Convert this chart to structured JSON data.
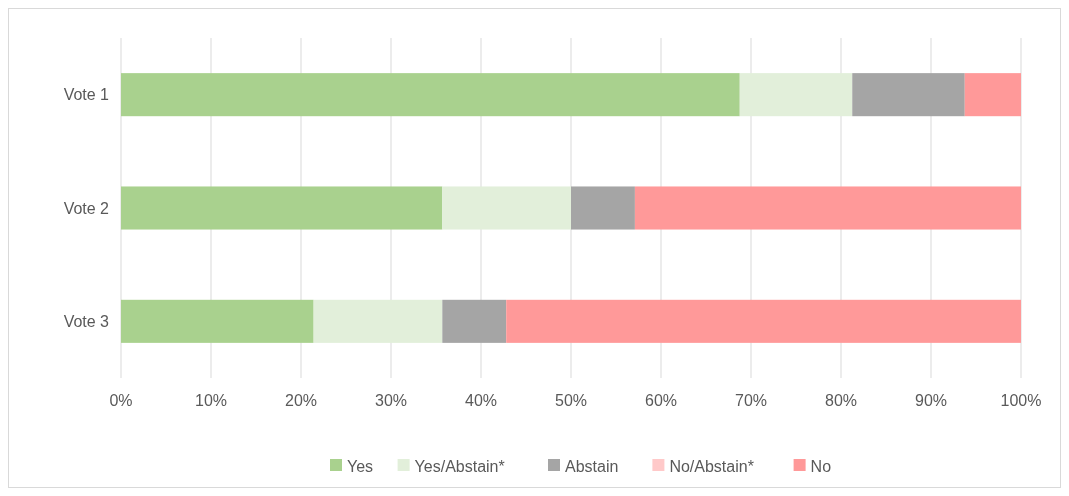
{
  "chart_data": {
    "type": "bar",
    "orientation": "horizontal",
    "stacked": true,
    "categories": [
      "Vote 1",
      "Vote 2",
      "Vote 3"
    ],
    "series": [
      {
        "name": "Yes",
        "color": "#a9d18e",
        "values": [
          68.75,
          35.7,
          21.4
        ]
      },
      {
        "name": "Yes/Abstain*",
        "color": "#e2efda",
        "values": [
          12.5,
          14.3,
          14.3
        ]
      },
      {
        "name": "Abstain",
        "color": "#a5a5a5",
        "values": [
          12.5,
          7.1,
          7.1
        ]
      },
      {
        "name": "No/Abstain*",
        "color": "#ffc9c9",
        "values": [
          0,
          0,
          0
        ]
      },
      {
        "name": "No",
        "color": "#ff9999",
        "values": [
          6.25,
          42.9,
          57.2
        ]
      }
    ],
    "xlim": [
      0,
      100
    ],
    "xticks": [
      {
        "value": 0,
        "label": "0%"
      },
      {
        "value": 10,
        "label": "10%"
      },
      {
        "value": 20,
        "label": "20%"
      },
      {
        "value": 30,
        "label": "30%"
      },
      {
        "value": 40,
        "label": "40%"
      },
      {
        "value": 50,
        "label": "50%"
      },
      {
        "value": 60,
        "label": "60%"
      },
      {
        "value": 70,
        "label": "70%"
      },
      {
        "value": 80,
        "label": "80%"
      },
      {
        "value": 90,
        "label": "90%"
      },
      {
        "value": 100,
        "label": "100%"
      }
    ],
    "grid": "x",
    "legend": "bottom"
  }
}
